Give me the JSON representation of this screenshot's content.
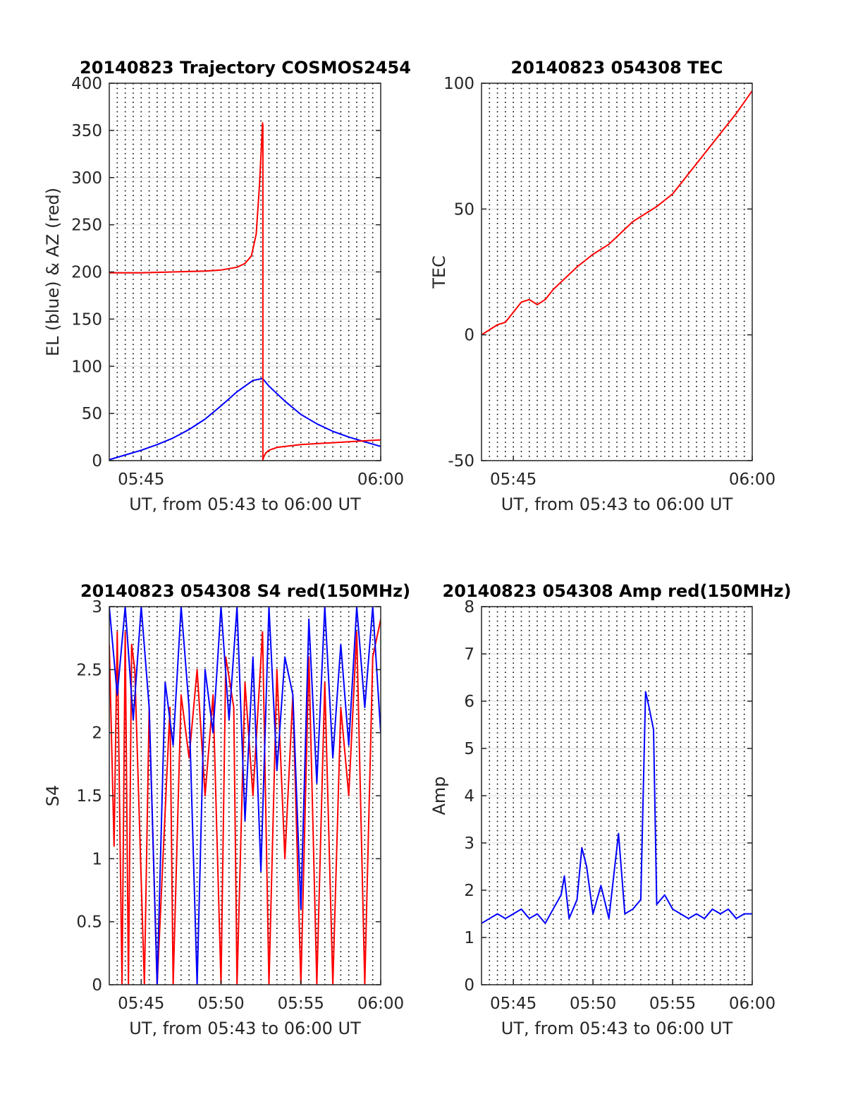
{
  "chart_data": [
    {
      "type": "line",
      "title": "20140823 Trajectory COSMOS2454",
      "xlabel": "UT, from 05:43 to 06:00 UT",
      "ylabel": "EL (blue) & AZ (red)",
      "xlim": [
        "05:43",
        "06:00"
      ],
      "ylim": [
        0,
        400
      ],
      "xticks": [
        "05:45",
        "06:00"
      ],
      "yticks": [
        "0",
        "50",
        "100",
        "150",
        "200",
        "250",
        "300",
        "350",
        "400"
      ],
      "grid": "x dotted vertical lines every 30 s, y solid light",
      "series": [
        {
          "name": "EL (blue)",
          "color": "#0000ff",
          "x": [
            0.0,
            1.0,
            2.0,
            3.0,
            4.0,
            5.0,
            6.0,
            7.0,
            8.0,
            9.0,
            9.6,
            10.0,
            11.0,
            12.0,
            13.0,
            14.0,
            15.0,
            16.0,
            17.0
          ],
          "y": [
            1,
            6,
            11,
            17,
            24,
            33,
            44,
            58,
            73,
            85,
            87,
            79,
            63,
            49,
            39,
            31,
            25,
            20,
            15
          ]
        },
        {
          "name": "AZ (red)",
          "color": "#ff0000",
          "x": [
            0.0,
            2.0,
            4.0,
            6.0,
            7.0,
            8.0,
            8.5,
            8.9,
            9.2,
            9.4,
            9.55,
            9.6,
            9.62,
            9.62,
            9.65,
            9.8,
            10.0,
            10.5,
            11.0,
            12.0,
            13.0,
            14.0,
            15.0,
            16.0,
            17.0
          ],
          "y": [
            199,
            199,
            200,
            201,
            202,
            205,
            209,
            217,
            240,
            290,
            340,
            358,
            355,
            0,
            3,
            8,
            11,
            14,
            15,
            17,
            18,
            19,
            20,
            21,
            22
          ]
        }
      ]
    },
    {
      "type": "line",
      "title": "20140823 054308 TEC",
      "xlabel": "UT, from 05:43 to 06:00 UT",
      "ylabel": "TEC",
      "xlim": [
        "05:43",
        "06:00"
      ],
      "ylim": [
        -50,
        100
      ],
      "xticks": [
        "05:45",
        "06:00"
      ],
      "yticks": [
        "-50",
        "0",
        "50",
        "100"
      ],
      "series": [
        {
          "name": "TEC",
          "color": "#ff0000",
          "x": [
            0.0,
            0.5,
            1.0,
            1.5,
            2.0,
            2.5,
            3.0,
            3.5,
            4.0,
            4.5,
            5.0,
            6.0,
            7.0,
            8.0,
            9.0,
            9.5,
            10.0,
            11.0,
            12.0,
            13.0,
            14.0,
            15.0,
            16.0,
            17.0
          ],
          "y": [
            0,
            2,
            4,
            5,
            9,
            13,
            14,
            12,
            14,
            18,
            21,
            27,
            32,
            36,
            42,
            45,
            47,
            51,
            56,
            64,
            72,
            80,
            88,
            97
          ]
        }
      ]
    },
    {
      "type": "line",
      "title": "20140823 054308 S4 red(150MHz)",
      "xlabel": "UT, from 05:43 to 06:00 UT",
      "ylabel": "S4",
      "xlim": [
        "05:43",
        "06:00"
      ],
      "ylim": [
        0,
        3
      ],
      "xticks": [
        "05:45",
        "05:50",
        "05:55",
        "06:00"
      ],
      "yticks": [
        "0",
        "0.5",
        "1",
        "1.5",
        "2",
        "2.5",
        "3"
      ],
      "series": [
        {
          "name": "S4 (red)",
          "color": "#ff0000",
          "x": [
            0.0,
            0.3,
            0.5,
            0.8,
            1.0,
            1.2,
            1.4,
            1.6,
            2.2,
            2.5,
            3.0,
            3.8,
            4.0,
            4.5,
            5.0,
            5.5,
            6.0,
            6.5,
            7.0,
            7.3,
            7.8,
            8.0,
            8.5,
            9.0,
            9.6,
            10.0,
            10.5,
            11.0,
            11.5,
            12.0,
            12.5,
            13.0,
            13.5,
            14.0,
            14.5,
            15.0,
            15.5,
            16.0,
            16.5,
            17.0
          ],
          "y": [
            2.7,
            1.1,
            2.8,
            0,
            2.8,
            0,
            2.7,
            2.5,
            0,
            2.2,
            0,
            2.2,
            0,
            2.3,
            1.8,
            2.5,
            1.5,
            2.3,
            0,
            2.6,
            2.2,
            0,
            2.4,
            1.5,
            2.8,
            0,
            2.5,
            1.0,
            2.3,
            0,
            2.6,
            0,
            2.4,
            0,
            2.2,
            1.5,
            2.8,
            0,
            2.6,
            2.9
          ]
        },
        {
          "name": "S4 (blue)",
          "color": "#0000ff",
          "x": [
            0.0,
            0.5,
            1.0,
            1.5,
            2.0,
            2.5,
            3.0,
            3.5,
            4.0,
            4.5,
            5.0,
            5.5,
            6.0,
            6.5,
            7.0,
            7.5,
            8.0,
            8.5,
            9.0,
            9.5,
            10.0,
            10.5,
            11.0,
            11.5,
            12.0,
            12.5,
            13.0,
            13.5,
            14.0,
            14.5,
            15.0,
            15.5,
            16.0,
            16.5,
            17.0
          ],
          "y": [
            3,
            2.3,
            3,
            2.1,
            3,
            2.2,
            0,
            2.4,
            1.9,
            3,
            2.2,
            0,
            2.5,
            2.0,
            3,
            2.1,
            3,
            1.3,
            2.6,
            0.9,
            3,
            1.7,
            2.6,
            2.3,
            0.6,
            2.9,
            1.6,
            3,
            1.8,
            2.7,
            1.9,
            3,
            2.2,
            3,
            2.0
          ]
        }
      ]
    },
    {
      "type": "line",
      "title": "20140823 054308 Amp red(150MHz)",
      "xlabel": "UT, from 05:43 to 06:00 UT",
      "ylabel": "Amp",
      "xlim": [
        "05:43",
        "06:00"
      ],
      "ylim": [
        0,
        8
      ],
      "xticks": [
        "05:45",
        "05:50",
        "05:55",
        "06:00"
      ],
      "yticks": [
        "0",
        "1",
        "2",
        "3",
        "4",
        "5",
        "6",
        "7",
        "8"
      ],
      "series": [
        {
          "name": "Amp (blue)",
          "color": "#0000ff",
          "x": [
            0.0,
            0.5,
            1.0,
            1.5,
            2.0,
            2.5,
            3.0,
            3.5,
            4.0,
            4.5,
            5.0,
            5.2,
            5.5,
            6.0,
            6.3,
            6.6,
            7.0,
            7.5,
            8.0,
            8.6,
            9.0,
            9.5,
            10.0,
            10.3,
            10.5,
            10.8,
            11.0,
            11.5,
            12.0,
            12.5,
            13.0,
            13.5,
            14.0,
            14.5,
            15.0,
            15.5,
            16.0,
            16.5,
            17.0
          ],
          "y": [
            1.3,
            1.4,
            1.5,
            1.4,
            1.5,
            1.6,
            1.4,
            1.5,
            1.3,
            1.6,
            1.9,
            2.3,
            1.4,
            1.8,
            2.9,
            2.5,
            1.5,
            2.1,
            1.4,
            3.2,
            1.5,
            1.6,
            1.8,
            6.2,
            5.9,
            5.4,
            1.7,
            1.9,
            1.6,
            1.5,
            1.4,
            1.5,
            1.4,
            1.6,
            1.5,
            1.6,
            1.4,
            1.5,
            1.5
          ]
        }
      ]
    }
  ]
}
